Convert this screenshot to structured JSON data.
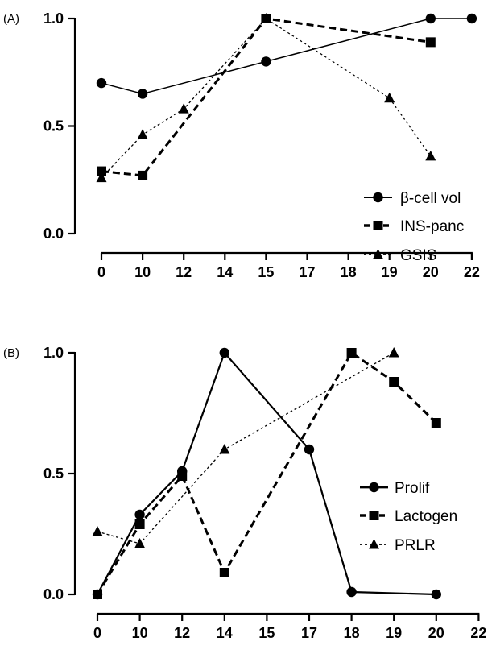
{
  "chart_data": [
    {
      "type": "line",
      "panel_label": "(A)",
      "categories": [
        "0",
        "10",
        "12",
        "14",
        "15",
        "17",
        "18",
        "19",
        "20",
        "22"
      ],
      "yticks": [
        "0.0",
        "0.5",
        "1.0"
      ],
      "ylim": [
        0,
        1
      ],
      "title": "",
      "xlabel": "",
      "ylabel": "",
      "legend_position": "bottom-right",
      "grid": false,
      "series": [
        {
          "name": "β-cell vol",
          "marker": "circle",
          "line": "solid",
          "x": [
            "0",
            "10",
            "15",
            "20",
            "22"
          ],
          "y": [
            0.7,
            0.65,
            0.8,
            1.0,
            1.0
          ]
        },
        {
          "name": "INS-panc",
          "marker": "square",
          "line": "dashed",
          "x": [
            "0",
            "10",
            "15",
            "20"
          ],
          "y": [
            0.29,
            0.27,
            1.0,
            0.89
          ]
        },
        {
          "name": "GSIS",
          "marker": "triangle",
          "line": "dotted",
          "x": [
            "0",
            "10",
            "12",
            "15",
            "19",
            "20"
          ],
          "y": [
            0.26,
            0.46,
            0.58,
            1.0,
            0.63,
            0.36
          ]
        }
      ]
    },
    {
      "type": "line",
      "panel_label": "(B)",
      "categories": [
        "0",
        "10",
        "12",
        "14",
        "15",
        "17",
        "18",
        "19",
        "20",
        "22"
      ],
      "yticks": [
        "0.0",
        "0.5",
        "1.0"
      ],
      "ylim": [
        0,
        1
      ],
      "title": "",
      "xlabel": "",
      "ylabel": "",
      "legend_position": "right",
      "grid": false,
      "series": [
        {
          "name": "Prolif",
          "marker": "circle",
          "line": "solid",
          "x": [
            "0",
            "10",
            "12",
            "14",
            "17",
            "18",
            "20"
          ],
          "y": [
            0.0,
            0.33,
            0.51,
            1.0,
            0.6,
            0.01,
            0.0
          ]
        },
        {
          "name": "Lactogen",
          "marker": "square",
          "line": "dashed",
          "x": [
            "0",
            "10",
            "12",
            "14",
            "18",
            "19",
            "20"
          ],
          "y": [
            0.0,
            0.29,
            0.49,
            0.09,
            1.0,
            0.88,
            0.71
          ]
        },
        {
          "name": "PRLR",
          "marker": "triangle",
          "line": "dotted",
          "x": [
            "0",
            "10",
            "14",
            "19"
          ],
          "y": [
            0.26,
            0.21,
            0.6,
            1.0
          ]
        }
      ]
    }
  ]
}
